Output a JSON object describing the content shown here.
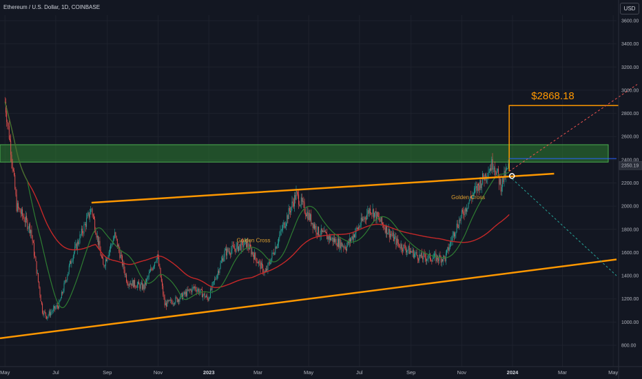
{
  "header": {
    "title": "Ethereum / U.S. Dollar, 1D, COINBASE",
    "currency_label": "USD"
  },
  "colors": {
    "background": "#131722",
    "up_candle": "#26a69a",
    "down_candle": "#ef5350",
    "ma_fast": "#2e7d32",
    "ma_slow": "#c62828",
    "trendline": "#ff9800",
    "resistance_zone": "#2e7d32"
  },
  "chart_data": {
    "type": "candlestick",
    "symbol": "Ethereum / U.S. Dollar",
    "timeframe": "1D",
    "exchange": "COINBASE",
    "x_ticks": [
      "May",
      "Jul",
      "Sep",
      "Nov",
      "2023",
      "Mar",
      "May",
      "Jul",
      "Sep",
      "Nov",
      "2024",
      "Mar",
      "May"
    ],
    "y_ticks": [
      3600,
      3400,
      3200,
      3000,
      2800,
      2600,
      2400,
      2200,
      2000,
      1800,
      1600,
      1400,
      1200,
      1000,
      800
    ],
    "y_tick_labels": [
      "3600.00",
      "3400.00",
      "3200.00",
      "3000.00",
      "2800.00",
      "2600.00",
      "2400.00",
      "2200.00",
      "2000.00",
      "1800.00",
      "1600.00",
      "1400.00",
      "1200.00",
      "1000.00",
      "800.00"
    ],
    "ylim": [
      700,
      3750
    ],
    "current_price": 2350.19,
    "current_price_label": "2350.19",
    "price_path": [
      {
        "date": "2022-05-01",
        "price": 2900
      },
      {
        "date": "2022-05-08",
        "price": 2500
      },
      {
        "date": "2022-05-15",
        "price": 2000
      },
      {
        "date": "2022-06-01",
        "price": 1800
      },
      {
        "date": "2022-06-15",
        "price": 1100
      },
      {
        "date": "2022-06-20",
        "price": 1050
      },
      {
        "date": "2022-07-05",
        "price": 1150
      },
      {
        "date": "2022-07-20",
        "price": 1550
      },
      {
        "date": "2022-08-13",
        "price": 1980
      },
      {
        "date": "2022-08-27",
        "price": 1480
      },
      {
        "date": "2022-09-10",
        "price": 1750
      },
      {
        "date": "2022-09-25",
        "price": 1350
      },
      {
        "date": "2022-10-15",
        "price": 1300
      },
      {
        "date": "2022-10-31",
        "price": 1580
      },
      {
        "date": "2022-11-09",
        "price": 1150
      },
      {
        "date": "2022-11-25",
        "price": 1200
      },
      {
        "date": "2022-12-15",
        "price": 1300
      },
      {
        "date": "2022-12-31",
        "price": 1200
      },
      {
        "date": "2023-01-20",
        "price": 1600
      },
      {
        "date": "2023-02-15",
        "price": 1680
      },
      {
        "date": "2023-03-10",
        "price": 1420
      },
      {
        "date": "2023-03-30",
        "price": 1800
      },
      {
        "date": "2023-04-16",
        "price": 2100
      },
      {
        "date": "2023-05-12",
        "price": 1780
      },
      {
        "date": "2023-06-15",
        "price": 1650
      },
      {
        "date": "2023-07-14",
        "price": 1980
      },
      {
        "date": "2023-08-17",
        "price": 1670
      },
      {
        "date": "2023-09-12",
        "price": 1560
      },
      {
        "date": "2023-10-12",
        "price": 1550
      },
      {
        "date": "2023-10-24",
        "price": 1800
      },
      {
        "date": "2023-11-10",
        "price": 2050
      },
      {
        "date": "2023-12-09",
        "price": 2380
      },
      {
        "date": "2023-12-18",
        "price": 2180
      },
      {
        "date": "2023-12-28",
        "price": 2350
      }
    ],
    "moving_averages": [
      {
        "type": "fast",
        "color": "#2e7d32"
      },
      {
        "type": "slow",
        "color": "#c62828"
      }
    ],
    "resistance_zone": {
      "from": 2380,
      "to": 2530
    },
    "support_line": [
      {
        "date": "2022-04-25",
        "price": 860
      },
      {
        "date": "2024-05-05",
        "price": 1540
      }
    ],
    "resistance_line": [
      {
        "date": "2022-08-13",
        "price": 2030
      },
      {
        "date": "2024-02-20",
        "price": 2280
      }
    ],
    "target": {
      "label": "$2868.18",
      "price": 2868.18
    },
    "annotations": [
      {
        "text": "Golden Cross",
        "date": "2023-02-20",
        "price": 1690
      },
      {
        "text": "Golden Cross",
        "date": "2023-11-05",
        "price": 2060
      }
    ]
  }
}
